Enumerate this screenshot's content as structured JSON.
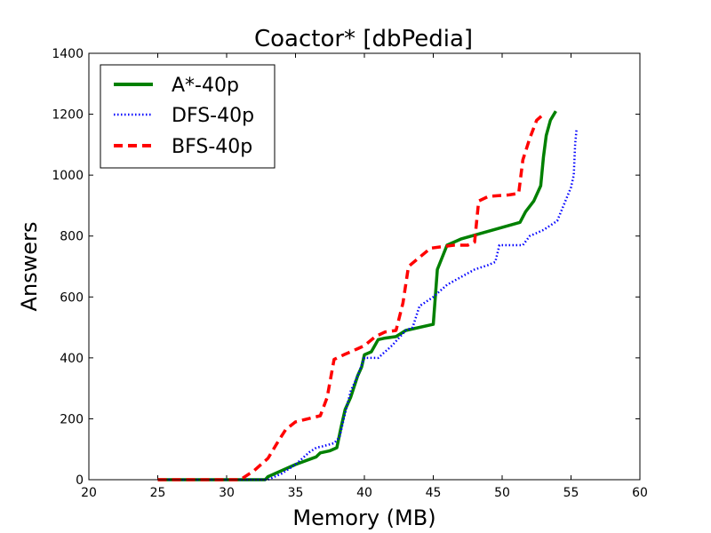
{
  "chart_data": {
    "type": "line",
    "title": "Coactor* [dbPedia]",
    "xlabel": "Memory (MB)",
    "ylabel": "Answers",
    "xlim": [
      20,
      60
    ],
    "ylim": [
      0,
      1400
    ],
    "xticks": [
      20,
      25,
      30,
      35,
      40,
      45,
      50,
      55,
      60
    ],
    "yticks": [
      0,
      200,
      400,
      600,
      800,
      1000,
      1200,
      1400
    ],
    "grid": false,
    "legend_position": "top-left",
    "series": [
      {
        "name": "A*-40p",
        "color": "#008000",
        "style": "solid",
        "points": [
          [
            25,
            0
          ],
          [
            29,
            0
          ],
          [
            32.8,
            0
          ],
          [
            33,
            10
          ],
          [
            35,
            50
          ],
          [
            36.5,
            75
          ],
          [
            36.8,
            88
          ],
          [
            37.5,
            95
          ],
          [
            38,
            105
          ],
          [
            38.3,
            170
          ],
          [
            38.6,
            230
          ],
          [
            39,
            270
          ],
          [
            39.5,
            340
          ],
          [
            39.8,
            370
          ],
          [
            40,
            410
          ],
          [
            40.5,
            420
          ],
          [
            41,
            460
          ],
          [
            41.5,
            465
          ],
          [
            42.3,
            470
          ],
          [
            43,
            490
          ],
          [
            45,
            510
          ],
          [
            45.3,
            690
          ],
          [
            46,
            770
          ],
          [
            47,
            790
          ],
          [
            51.3,
            845
          ],
          [
            51.7,
            880
          ],
          [
            52.3,
            915
          ],
          [
            52.8,
            965
          ],
          [
            53,
            1060
          ],
          [
            53.2,
            1130
          ],
          [
            53.5,
            1180
          ],
          [
            53.9,
            1210
          ]
        ]
      },
      {
        "name": "DFS-40p",
        "color": "#0000ff",
        "style": "dotted",
        "points": [
          [
            25,
            0
          ],
          [
            30,
            0
          ],
          [
            33,
            0
          ],
          [
            34,
            20
          ],
          [
            35,
            50
          ],
          [
            36,
            90
          ],
          [
            36.5,
            105
          ],
          [
            37,
            110
          ],
          [
            37.8,
            120
          ],
          [
            38.2,
            140
          ],
          [
            38.5,
            200
          ],
          [
            39,
            290
          ],
          [
            39.5,
            340
          ],
          [
            40,
            400
          ],
          [
            41,
            400
          ],
          [
            42,
            440
          ],
          [
            43,
            490
          ],
          [
            43.5,
            500
          ],
          [
            44,
            570
          ],
          [
            45,
            600
          ],
          [
            46,
            640
          ],
          [
            47,
            665
          ],
          [
            48,
            690
          ],
          [
            49,
            705
          ],
          [
            49.5,
            715
          ],
          [
            49.8,
            770
          ],
          [
            51,
            770
          ],
          [
            51.5,
            770
          ],
          [
            52,
            800
          ],
          [
            53,
            820
          ],
          [
            54,
            850
          ],
          [
            55,
            960
          ],
          [
            55.2,
            1000
          ],
          [
            55.3,
            1100
          ],
          [
            55.4,
            1150
          ]
        ]
      },
      {
        "name": "BFS-40p",
        "color": "#ff0000",
        "style": "dashed",
        "points": [
          [
            25,
            0
          ],
          [
            31,
            0
          ],
          [
            32,
            30
          ],
          [
            33,
            70
          ],
          [
            33.8,
            130
          ],
          [
            34.3,
            165
          ],
          [
            35,
            190
          ],
          [
            36.8,
            210
          ],
          [
            37.3,
            270
          ],
          [
            37.8,
            395
          ],
          [
            38.5,
            410
          ],
          [
            39.5,
            430
          ],
          [
            40,
            440
          ],
          [
            40.8,
            470
          ],
          [
            41.5,
            485
          ],
          [
            42.3,
            490
          ],
          [
            42.8,
            580
          ],
          [
            43.2,
            700
          ],
          [
            44,
            730
          ],
          [
            44.8,
            760
          ],
          [
            46.5,
            770
          ],
          [
            47.5,
            770
          ],
          [
            48,
            780
          ],
          [
            48.3,
            915
          ],
          [
            49,
            930
          ],
          [
            50.5,
            935
          ],
          [
            51.2,
            940
          ],
          [
            51.5,
            1050
          ],
          [
            52,
            1120
          ],
          [
            52.5,
            1180
          ],
          [
            53,
            1200
          ]
        ]
      }
    ]
  }
}
